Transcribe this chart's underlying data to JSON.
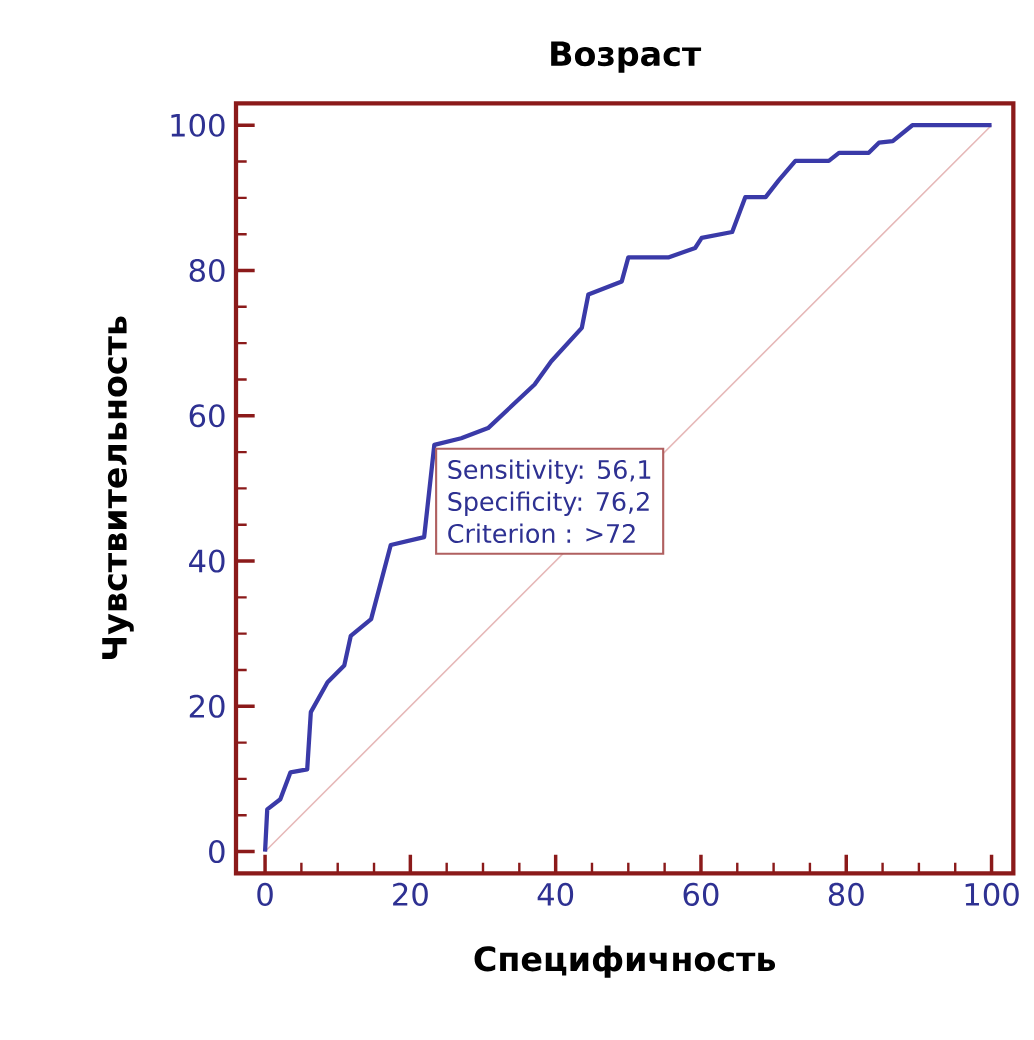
{
  "chart_data": {
    "type": "line",
    "title": "Возраст",
    "xlabel": "Специфичность",
    "ylabel": "Чувствительность",
    "xlim": [
      -4,
      103
    ],
    "ylim": [
      -3,
      103
    ],
    "xticks": [
      0,
      20,
      40,
      60,
      80,
      100
    ],
    "yticks": [
      0,
      20,
      40,
      60,
      80,
      100
    ],
    "marker": "none",
    "series": [
      {
        "color": "#3a3aa8",
        "x": [
          0,
          0.3,
          2.1,
          3.5,
          5.8,
          6.3,
          8.6,
          10.9,
          11.8,
          14.6,
          17.3,
          21.9,
          23.3,
          27,
          30.7,
          37.1,
          39.4,
          43.6,
          44.5,
          49.1,
          50,
          55.5,
          59.2,
          60.1,
          64.3,
          66.1,
          68.9,
          70.7,
          73,
          77.6,
          79,
          83.1,
          84.5,
          86.4,
          89.1,
          100
        ],
        "values": [
          0,
          5.8,
          7.2,
          10.9,
          11.3,
          19.2,
          23.3,
          25.6,
          29.7,
          32,
          42.2,
          43.3,
          56,
          56.9,
          58.3,
          64.3,
          67.5,
          72.1,
          76.7,
          78.5,
          81.8,
          81.8,
          83.1,
          84.5,
          85.3,
          90.1,
          90.1,
          92.4,
          95.1,
          95.1,
          96.2,
          96.2,
          97.6,
          97.8,
          100,
          100
        ]
      },
      {
        "color": "#e6b8b8",
        "x": [
          0,
          100
        ],
        "values": [
          0,
          100
        ]
      }
    ],
    "annotations": [
      "Sensitivity: 56,1",
      "Specificity: 76,2",
      "Criterion : >72"
    ]
  }
}
